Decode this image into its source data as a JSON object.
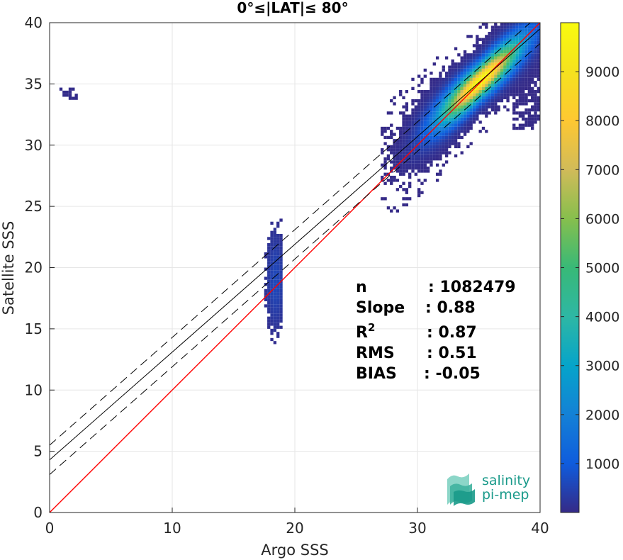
{
  "chart_data": {
    "type": "heatmap",
    "title": "0°≤|LAT|≤ 80°",
    "xlabel": "Argo SSS",
    "ylabel": "Satellite SSS",
    "xlim": [
      0,
      40
    ],
    "ylim": [
      0,
      40
    ],
    "xticks": [
      0,
      10,
      20,
      30,
      40
    ],
    "yticks": [
      0,
      5,
      10,
      15,
      20,
      25,
      30,
      35,
      40
    ],
    "grid": true,
    "colorbar": {
      "range": [
        1,
        10000
      ],
      "ticks": [
        1000,
        2000,
        3000,
        4000,
        5000,
        6000,
        7000,
        8000,
        9000
      ],
      "colormap": "parula"
    },
    "lines": [
      {
        "name": "identity",
        "color": "#ff0000",
        "style": "solid",
        "slope": 1.0,
        "intercept": 0.0
      },
      {
        "name": "fit",
        "color": "#000000",
        "style": "solid",
        "slope": 0.88,
        "intercept": 4.3
      },
      {
        "name": "fit-upper",
        "color": "#000000",
        "style": "dashed",
        "slope": 0.88,
        "intercept": 5.5
      },
      {
        "name": "fit-lower",
        "color": "#000000",
        "style": "dashed",
        "slope": 0.88,
        "intercept": 3.1
      }
    ],
    "clusters": [
      {
        "x_center": 35,
        "y_center": 34.8,
        "x_range": [
          27,
          40
        ],
        "y_range": [
          22.5,
          40
        ],
        "peak_count": 9900
      },
      {
        "x_center": 18.3,
        "y_center": 18.8,
        "x_range": [
          17.5,
          19
        ],
        "y_range": [
          13.5,
          24
        ],
        "peak_count": 600
      },
      {
        "x_center": 1.5,
        "y_center": 34.2,
        "x_range": [
          0.8,
          2.2
        ],
        "y_range": [
          33.7,
          34.6
        ],
        "peak_count": 40
      }
    ],
    "stats": [
      {
        "label": "n",
        "value": ": 1082479"
      },
      {
        "label": "Slope",
        "value": ": 0.88"
      },
      {
        "label": "R",
        "sup": "2",
        "value": ": 0.87"
      },
      {
        "label": "RMS",
        "value": ": 0.51"
      },
      {
        "label": "BIAS",
        "value": ": -0.05"
      }
    ],
    "colors": {
      "identity": "#ff0000",
      "fit": "#000000",
      "grid": "#e6e6e6",
      "axis": "#262626",
      "logo": "#1a9a8a"
    }
  },
  "logo": {
    "line1": "salinity",
    "line2": "pi-mep"
  }
}
